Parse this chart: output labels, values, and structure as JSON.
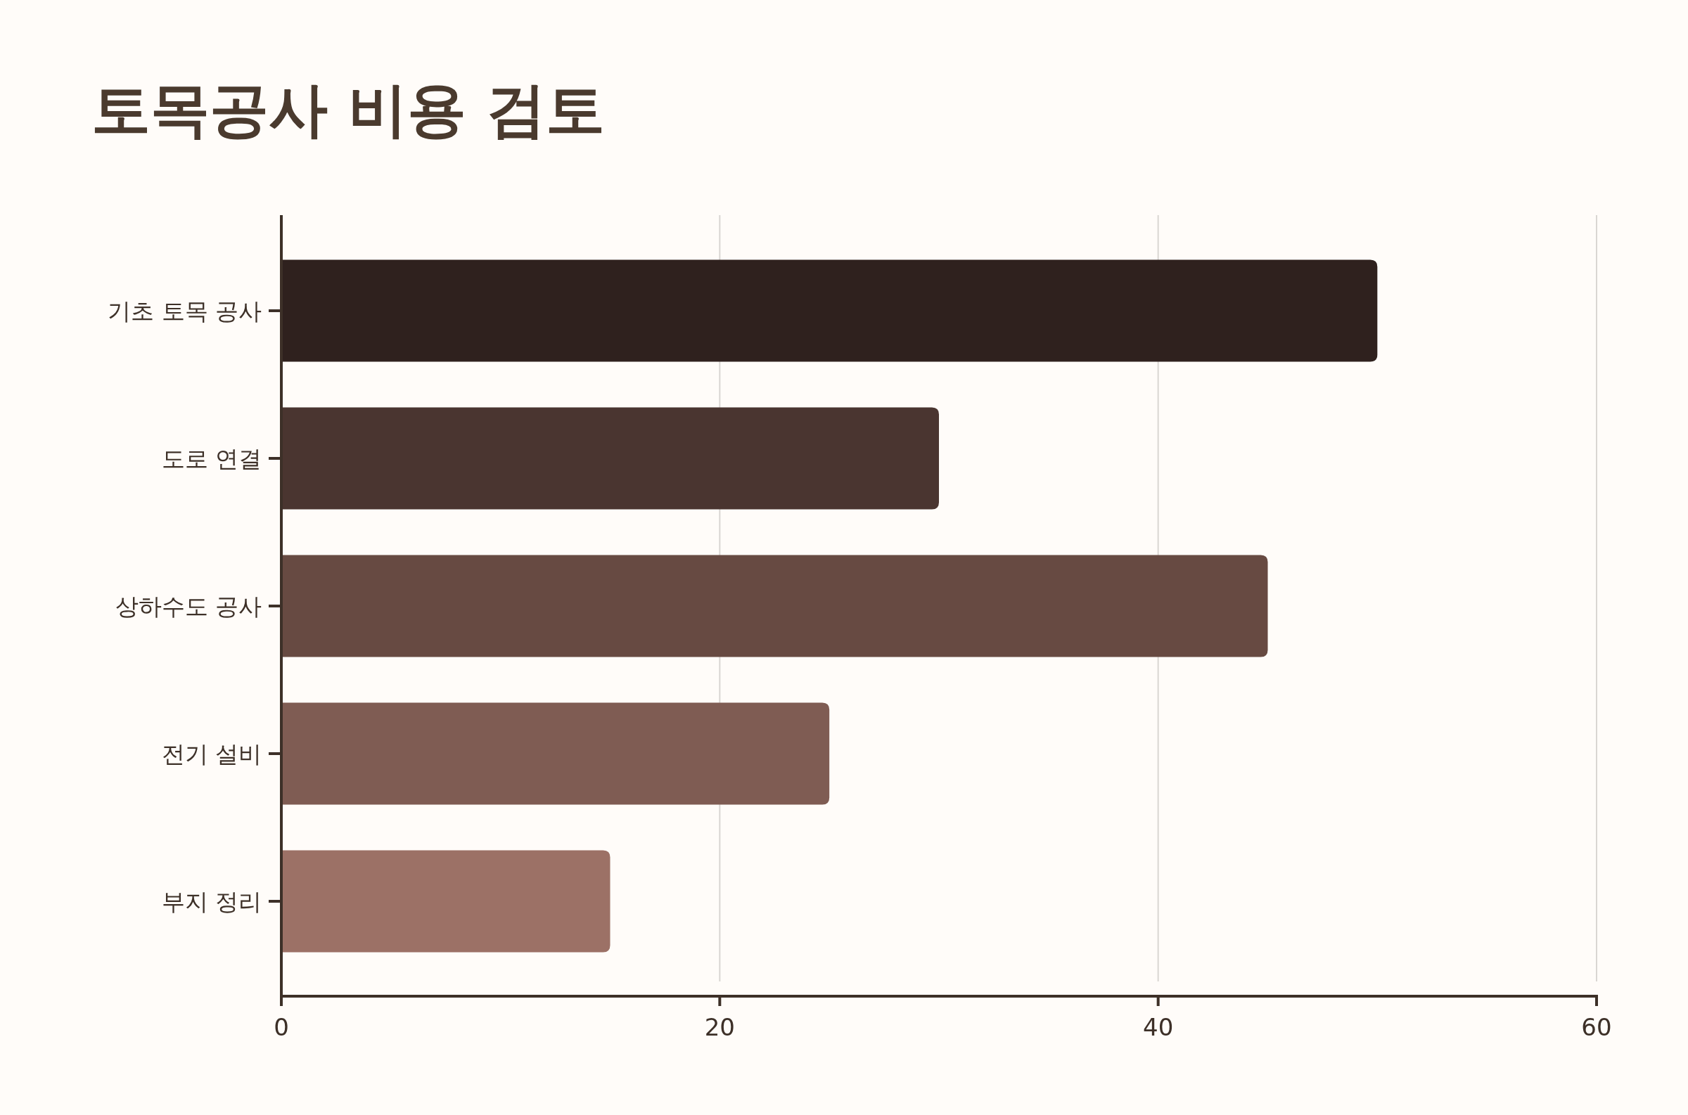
{
  "chart_data": {
    "type": "bar",
    "orientation": "horizontal",
    "title": "토목공사 비용 검토",
    "categories": [
      "기초 토목 공사",
      "도로 연결",
      "상하수도 공사",
      "전기 설비",
      "부지 정리"
    ],
    "values": [
      50,
      30,
      45,
      25,
      15
    ],
    "colors": [
      "#2f211e",
      "#4a3530",
      "#674a42",
      "#7f5c53",
      "#9c7166"
    ],
    "xlim": [
      0,
      60
    ],
    "xticks": [
      0,
      20,
      40,
      60
    ],
    "grid": "x"
  }
}
